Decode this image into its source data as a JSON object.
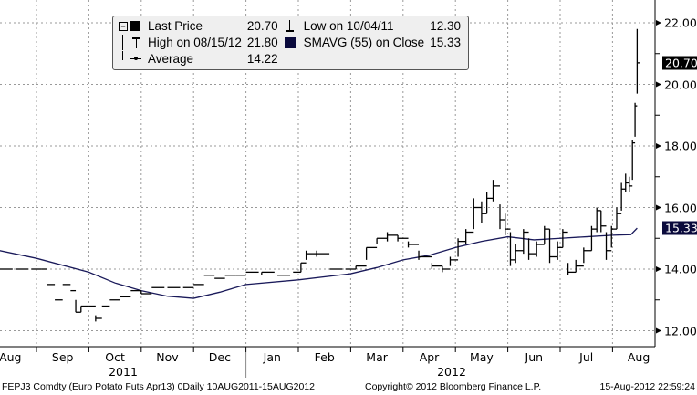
{
  "chart_data": {
    "type": "ohlc-bar-line",
    "title": "FEPJ3 Comdty (Euro Potato Futs  Apr13) 0Daily 10AUG2011-15AUG2012",
    "x_unit": "months since 1 Aug 2011",
    "xlim": [
      0,
      12.55
    ],
    "ylim": [
      11.5,
      22.5
    ],
    "yticks": [
      "22.00",
      "20.00",
      "18.00",
      "16.00",
      "14.00",
      "12.00"
    ],
    "ytick_values": [
      22,
      20,
      18,
      16,
      14,
      12
    ],
    "month_labels": [
      "Aug",
      "Sep",
      "Oct",
      "Nov",
      "Dec",
      "Jan",
      "Feb",
      "Mar",
      "Apr",
      "May",
      "Jun",
      "Jul",
      "Aug"
    ],
    "year_labels": [
      "2011",
      "2012"
    ],
    "grid": true,
    "legend_position": "top-left",
    "legend": {
      "last_price_label": "Last Price",
      "last_price": "20.70",
      "high_label": "High on 08/15/12",
      "high": "21.80",
      "average_label": "Average",
      "average": "14.22",
      "low_label": "Low on 10/04/11",
      "low": "12.30",
      "sma_label": "SMAVG (55) on Close",
      "sma": "15.33"
    },
    "price_tags": {
      "last": "20.70",
      "sma": "15.33"
    },
    "series": [
      {
        "name": "Last Price",
        "color": "#000000",
        "bars_t_h_l_c": [
          [
            0.3,
            14,
            14,
            14
          ],
          [
            0.6,
            14,
            14,
            14
          ],
          [
            0.9,
            14,
            14,
            14
          ],
          [
            1.1,
            14,
            14,
            14
          ],
          [
            1.2,
            13.5,
            13.5,
            13.5
          ],
          [
            1.35,
            13.0,
            13.0,
            13.0
          ],
          [
            1.5,
            13.5,
            13.5,
            13.5
          ],
          [
            1.65,
            13.3,
            13.3,
            13.3
          ],
          [
            1.75,
            13.0,
            12.6,
            12.6
          ],
          [
            1.85,
            12.8,
            12.6,
            12.8
          ],
          [
            2.0,
            12.8,
            12.8,
            12.8
          ],
          [
            2.13,
            12.5,
            12.3,
            12.4
          ],
          [
            2.25,
            12.8,
            12.8,
            12.8
          ],
          [
            2.4,
            13.0,
            13.0,
            13.0
          ],
          [
            2.6,
            13.1,
            13.1,
            13.1
          ],
          [
            2.8,
            13.3,
            13.3,
            13.3
          ],
          [
            3.0,
            13.3,
            13.2,
            13.2
          ],
          [
            3.2,
            13.4,
            13.4,
            13.4
          ],
          [
            3.5,
            13.4,
            13.4,
            13.4
          ],
          [
            3.8,
            13.4,
            13.4,
            13.4
          ],
          [
            4.0,
            13.5,
            13.5,
            13.5
          ],
          [
            4.2,
            13.8,
            13.8,
            13.8
          ],
          [
            4.4,
            13.7,
            13.7,
            13.7
          ],
          [
            4.6,
            13.8,
            13.8,
            13.8
          ],
          [
            4.8,
            13.8,
            13.8,
            13.8
          ],
          [
            5.0,
            13.9,
            13.9,
            13.9
          ],
          [
            5.3,
            13.9,
            13.8,
            13.9
          ],
          [
            5.6,
            13.8,
            13.8,
            13.8
          ],
          [
            5.9,
            13.9,
            13.9,
            13.9
          ],
          [
            6.05,
            14.2,
            13.9,
            14.2
          ],
          [
            6.15,
            14.6,
            14.3,
            14.5
          ],
          [
            6.35,
            14.6,
            14.4,
            14.5
          ],
          [
            6.6,
            14.0,
            14.0,
            14.0
          ],
          [
            6.9,
            14.0,
            14.0,
            14.0
          ],
          [
            7.1,
            14.1,
            14.0,
            14.1
          ],
          [
            7.3,
            14.7,
            14.3,
            14.7
          ],
          [
            7.5,
            15.0,
            14.8,
            15.0
          ],
          [
            7.7,
            15.2,
            14.9,
            15.1
          ],
          [
            7.9,
            15.1,
            14.9,
            15.0
          ],
          [
            8.1,
            14.9,
            14.7,
            14.8
          ],
          [
            8.3,
            14.6,
            14.3,
            14.4
          ],
          [
            8.55,
            14.2,
            14.0,
            14.1
          ],
          [
            8.75,
            14.1,
            13.9,
            14.0
          ],
          [
            8.9,
            14.4,
            14.1,
            14.3
          ],
          [
            9.05,
            15.0,
            14.4,
            14.9
          ],
          [
            9.2,
            15.3,
            14.8,
            15.2
          ],
          [
            9.35,
            16.3,
            15.3,
            16.0
          ],
          [
            9.5,
            16.2,
            15.5,
            15.8
          ],
          [
            9.6,
            16.5,
            15.8,
            16.3
          ],
          [
            9.72,
            16.9,
            16.2,
            16.7
          ],
          [
            9.85,
            16.1,
            15.3,
            15.6
          ],
          [
            9.95,
            15.8,
            15.1,
            15.3
          ],
          [
            10.05,
            15.2,
            14.1,
            14.3
          ],
          [
            10.15,
            14.8,
            14.2,
            14.6
          ],
          [
            10.3,
            15.3,
            14.5,
            15.2
          ],
          [
            10.4,
            15.0,
            14.3,
            14.5
          ],
          [
            10.55,
            14.9,
            14.4,
            14.8
          ],
          [
            10.7,
            15.4,
            14.8,
            15.3
          ],
          [
            10.8,
            15.3,
            14.2,
            14.4
          ],
          [
            10.95,
            14.9,
            14.3,
            14.7
          ],
          [
            11.05,
            15.3,
            14.7,
            15.2
          ],
          [
            11.15,
            14.2,
            13.8,
            13.9
          ],
          [
            11.3,
            14.3,
            13.9,
            14.1
          ],
          [
            11.45,
            14.7,
            14.2,
            14.6
          ],
          [
            11.6,
            15.4,
            14.6,
            15.3
          ],
          [
            11.7,
            16.0,
            15.2,
            15.9
          ],
          [
            11.78,
            15.9,
            15.2,
            15.4
          ],
          [
            11.88,
            15.2,
            14.3,
            14.6
          ],
          [
            11.98,
            15.4,
            14.7,
            15.3
          ],
          [
            12.08,
            16.0,
            15.3,
            15.8
          ],
          [
            12.17,
            16.8,
            15.9,
            16.6
          ],
          [
            12.25,
            17.1,
            16.5,
            16.8
          ],
          [
            12.32,
            17.0,
            16.5,
            16.7
          ],
          [
            12.38,
            18.2,
            16.9,
            18.1
          ],
          [
            12.43,
            19.4,
            18.3,
            19.3
          ],
          [
            12.47,
            21.8,
            19.7,
            20.7
          ]
        ]
      },
      {
        "name": "SMAVG (55) on Close",
        "color": "#1a1a5a",
        "points_t_v": [
          [
            0.3,
            14.6
          ],
          [
            1,
            14.35
          ],
          [
            2,
            13.9
          ],
          [
            2.5,
            13.55
          ],
          [
            3,
            13.3
          ],
          [
            3.5,
            13.12
          ],
          [
            4,
            13.05
          ],
          [
            4.5,
            13.25
          ],
          [
            5,
            13.5
          ],
          [
            6,
            13.65
          ],
          [
            7,
            13.85
          ],
          [
            7.5,
            14.05
          ],
          [
            8,
            14.3
          ],
          [
            8.5,
            14.45
          ],
          [
            9,
            14.7
          ],
          [
            9.5,
            14.9
          ],
          [
            10,
            15.05
          ],
          [
            10.5,
            14.95
          ],
          [
            11,
            15.0
          ],
          [
            11.5,
            15.05
          ],
          [
            12,
            15.1
          ],
          [
            12.35,
            15.12
          ],
          [
            12.47,
            15.33
          ]
        ]
      }
    ]
  },
  "footer": {
    "ticker": "FEPJ3 Comdty (Euro Potato Futs  Apr13) 0Daily 10AUG2011-15AUG2012",
    "copyright": "Copyright© 2012 Bloomberg Finance L.P.",
    "timestamp": "15-Aug-2012 22:59:24"
  }
}
